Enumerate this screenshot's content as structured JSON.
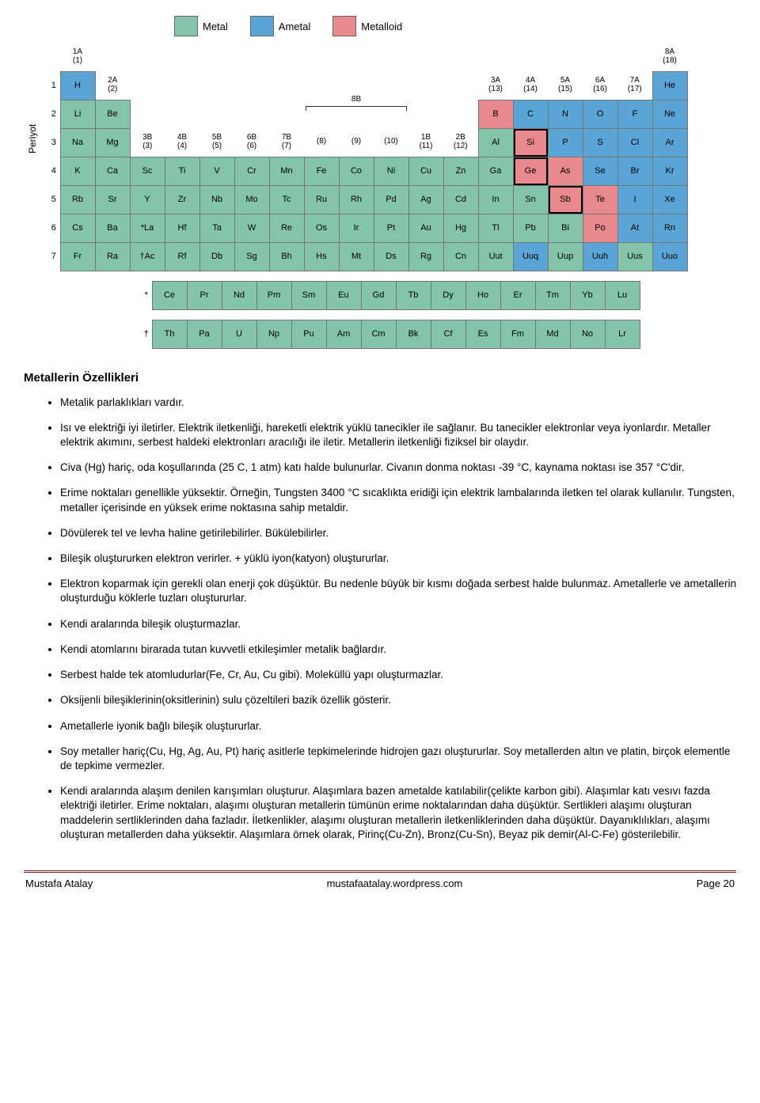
{
  "colors": {
    "metal": "#84c4aa",
    "ametal": "#5ba4d6",
    "metalloid": "#e88a8d",
    "border": "#777777",
    "footer_rule": "#8a1a1a"
  },
  "legend": {
    "metal": "Metal",
    "ametal": "Ametal",
    "metalloid": "Metalloid"
  },
  "axis_label": "Periyot",
  "group_headers": {
    "g1": {
      "top": "1A",
      "sub": "(1)"
    },
    "g2": {
      "top": "2A",
      "sub": "(2)"
    },
    "g3": {
      "top": "3B",
      "sub": "(3)"
    },
    "g4": {
      "top": "4B",
      "sub": "(4)"
    },
    "g5": {
      "top": "5B",
      "sub": "(5)"
    },
    "g6": {
      "top": "6B",
      "sub": "(6)"
    },
    "g7": {
      "top": "7B",
      "sub": "(7)"
    },
    "g8": {
      "top": "",
      "sub": "(8)"
    },
    "g9": {
      "top": "",
      "sub": "(9)"
    },
    "g10": {
      "top": "",
      "sub": "(10)"
    },
    "g11": {
      "top": "1B",
      "sub": "(11)"
    },
    "g12": {
      "top": "2B",
      "sub": "(12)"
    },
    "g13": {
      "top": "3A",
      "sub": "(13)"
    },
    "g14": {
      "top": "4A",
      "sub": "(14)"
    },
    "g15": {
      "top": "5A",
      "sub": "(15)"
    },
    "g16": {
      "top": "6A",
      "sub": "(16)"
    },
    "g17": {
      "top": "7A",
      "sub": "(17)"
    },
    "g18": {
      "top": "8A",
      "sub": "(18)"
    },
    "brace_8b": "8B"
  },
  "periods": [
    "1",
    "2",
    "3",
    "4",
    "5",
    "6",
    "7"
  ],
  "elements": {
    "H": "H",
    "He": "He",
    "Li": "Li",
    "Be": "Be",
    "B": "B",
    "C": "C",
    "N": "N",
    "O": "O",
    "F": "F",
    "Ne": "Ne",
    "Na": "Na",
    "Mg": "Mg",
    "Al": "Al",
    "Si": "Si",
    "P": "P",
    "S": "S",
    "Cl": "Cl",
    "Ar": "Ar",
    "K": "K",
    "Ca": "Ca",
    "Sc": "Sc",
    "Ti": "Ti",
    "V": "V",
    "Cr": "Cr",
    "Mn": "Mn",
    "Fe": "Fe",
    "Co": "Co",
    "Ni": "Ni",
    "Cu": "Cu",
    "Zn": "Zn",
    "Ga": "Ga",
    "Ge": "Ge",
    "As": "As",
    "Se": "Se",
    "Br": "Br",
    "Kr": "Kr",
    "Rb": "Rb",
    "Sr": "Sr",
    "Y": "Y",
    "Zr": "Zr",
    "Nb": "Nb",
    "Mo": "Mo",
    "Tc": "Tc",
    "Ru": "Ru",
    "Rh": "Rh",
    "Pd": "Pd",
    "Ag": "Ag",
    "Cd": "Cd",
    "In": "In",
    "Sn": "Sn",
    "Sb": "Sb",
    "Te": "Te",
    "I": "I",
    "Xe": "Xe",
    "Cs": "Cs",
    "Ba": "Ba",
    "La": "*La",
    "Hf": "Hf",
    "Ta": "Ta",
    "W": "W",
    "Re": "Re",
    "Os": "Os",
    "Ir": "Ir",
    "Pt": "Pt",
    "Au": "Au",
    "Hg": "Hg",
    "Tl": "Tl",
    "Pb": "Pb",
    "Bi": "Bi",
    "Po": "Po",
    "At": "At",
    "Rn": "Rn",
    "Fr": "Fr",
    "Ra": "Ra",
    "Ac": "†Ac",
    "Rf": "Rf",
    "Db": "Db",
    "Sg": "Sg",
    "Bh": "Bh",
    "Hs": "Hs",
    "Mt": "Mt",
    "Ds": "Ds",
    "Rg": "Rg",
    "Cn": "Cn",
    "Uut": "Uut",
    "Uuq": "Uuq",
    "Uup": "Uup",
    "Uuh": "Uuh",
    "Uus": "Uus",
    "Uuo": "Uuo",
    "Ce": "Ce",
    "Pr": "Pr",
    "Nd": "Nd",
    "Pm": "Pm",
    "Sm": "Sm",
    "Eu": "Eu",
    "Gd": "Gd",
    "Tb": "Tb",
    "Dy": "Dy",
    "Ho": "Ho",
    "Er": "Er",
    "Tm": "Tm",
    "Yb": "Yb",
    "Lu": "Lu",
    "Th": "Th",
    "Pa": "Pa",
    "U": "U",
    "Np": "Np",
    "Pu": "Pu",
    "Am": "Am",
    "Cm": "Cm",
    "Bk": "Bk",
    "Cf": "Cf",
    "Es": "Es",
    "Fm": "Fm",
    "Md": "Md",
    "No": "No",
    "Lr": "Lr"
  },
  "la_mark": "*",
  "ac_mark": "†",
  "section_title": "Metallerin Özellikleri",
  "bullets": [
    "Metalik parlaklıkları vardır.",
    "Isı ve elektriği iyi iletirler. Elektrik iletkenliği, hareketli elektrik yüklü tanecikler ile sağlanır. Bu tanecikler elektronlar veya iyonlardır. Metaller elektrik akımını, serbest haldeki elektronları aracılığı ile iletir. Metallerin iletkenliği fiziksel bir olaydır.",
    "Civa (Hg) hariç, oda koşullarında (25 C, 1 atm) katı halde bulunurlar. Civanın donma noktası -39 °C, kaynama noktası ise 357 °C'dir.",
    "Erime noktaları genellikle yüksektir. Örneğin, Tungsten  3400 °C sıcaklıkta eridiği için elektrik lambalarında iletken tel olarak kullanılır. Tungsten, metaller içerisinde en yüksek erime noktasına sahip metaldir.",
    "Dövülerek tel ve levha haline getirilebilirler. Bükülebilirler.",
    "Bileşik oluştururken elektron verirler. + yüklü iyon(katyon) oluştururlar.",
    "Elektron koparmak için gerekli olan enerji çok düşüktür. Bu nedenle büyük bir kısmı doğada serbest halde bulunmaz. Ametallerle ve ametallerin oluşturduğu köklerle tuzları oluştururlar.",
    "Kendi aralarında bileşik oluşturmazlar.",
    "Kendi atomlarını birarada tutan kuvvetli etkileşimler metalik bağlardır.",
    "Serbest halde tek atomludurlar(Fe, Cr, Au, Cu gibi). Moleküllü yapı oluşturmazlar.",
    "Oksijenli bileşiklerinin(oksitlerinin) sulu çözeltileri bazik özellik gösterir.",
    "Ametallerle iyonik bağlı bileşik oluştururlar.",
    "Soy metaller hariç(Cu, Hg, Ag, Au, Pt) hariç asitlerle tepkimelerinde hidrojen gazı oluştururlar. Soy metallerden altın ve platin, birçok elementle de tepkime vermezler.",
    "Kendi aralarında alaşım denilen karışımları oluşturur. Alaşımlara bazen ametalde katılabilir(çelikte karbon gibi). Alaşımlar katı vesıvı fazda elektriği iletirler. Erime noktaları, alaşımı oluşturan metallerin tümünün erime noktalarından daha düşüktür. Sertlikleri alaşımı oluşturan maddelerin sertliklerinden daha fazladır. İletkenlikler, alaşımı oluşturan metallerin iletkenliklerinden daha düşüktür. Dayanıklılıkları, alaşımı oluşturan metallerden daha yüksektir. Alaşımlara örnek olarak, Pirinç(Cu-Zn), Bronz(Cu-Sn), Beyaz pik demir(Al-C-Fe) gösterilebilir."
  ],
  "footer": {
    "left": "Mustafa Atalay",
    "center": "mustafaatalay.wordpress.com",
    "right": "Page 20"
  }
}
